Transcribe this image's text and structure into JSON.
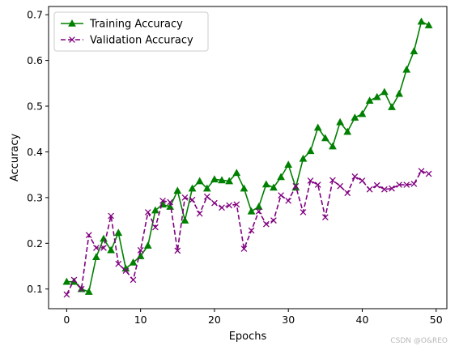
{
  "chart_data": {
    "type": "line",
    "xlabel": "Epochs",
    "ylabel": "Accuracy",
    "xlim": [
      -2.45,
      51.45
    ],
    "ylim": [
      0.057,
      0.718
    ],
    "xticks": [
      0,
      10,
      20,
      30,
      40,
      50
    ],
    "yticks": [
      0.1,
      0.2,
      0.3,
      0.4,
      0.5,
      0.6,
      0.7
    ],
    "grid": false,
    "legend_position": "top-left",
    "x": [
      0,
      1,
      2,
      3,
      4,
      5,
      6,
      7,
      8,
      9,
      10,
      11,
      12,
      13,
      14,
      15,
      16,
      17,
      18,
      19,
      20,
      21,
      22,
      23,
      24,
      25,
      26,
      27,
      28,
      29,
      30,
      31,
      32,
      33,
      34,
      35,
      36,
      37,
      38,
      39,
      40,
      41,
      42,
      43,
      44,
      45,
      46,
      47,
      48,
      49
    ],
    "series": [
      {
        "name": "Training Accuracy",
        "color": "#008000",
        "linestyle": "solid",
        "marker": "triangle-up",
        "values": [
          0.116,
          0.116,
          0.1,
          0.094,
          0.17,
          0.21,
          0.185,
          0.223,
          0.145,
          0.158,
          0.172,
          0.195,
          0.272,
          0.285,
          0.28,
          0.315,
          0.25,
          0.32,
          0.336,
          0.32,
          0.34,
          0.338,
          0.336,
          0.354,
          0.32,
          0.27,
          0.28,
          0.329,
          0.322,
          0.345,
          0.372,
          0.322,
          0.385,
          0.402,
          0.453,
          0.43,
          0.412,
          0.465,
          0.444,
          0.475,
          0.483,
          0.512,
          0.52,
          0.531,
          0.498,
          0.527,
          0.58,
          0.62,
          0.685,
          0.677
        ]
      },
      {
        "name": "Validation Accuracy",
        "color": "#800080",
        "linestyle": "dashed",
        "marker": "x",
        "values": [
          0.088,
          0.12,
          0.1,
          0.218,
          0.19,
          0.19,
          0.26,
          0.155,
          0.14,
          0.12,
          0.185,
          0.268,
          0.235,
          0.293,
          0.29,
          0.184,
          0.3,
          0.295,
          0.265,
          0.302,
          0.288,
          0.278,
          0.283,
          0.285,
          0.188,
          0.228,
          0.27,
          0.242,
          0.25,
          0.305,
          0.293,
          0.325,
          0.268,
          0.337,
          0.328,
          0.257,
          0.338,
          0.325,
          0.31,
          0.346,
          0.337,
          0.318,
          0.327,
          0.318,
          0.32,
          0.328,
          0.328,
          0.33,
          0.358,
          0.352
        ]
      }
    ]
  },
  "watermark": "CSDN @O&REO"
}
